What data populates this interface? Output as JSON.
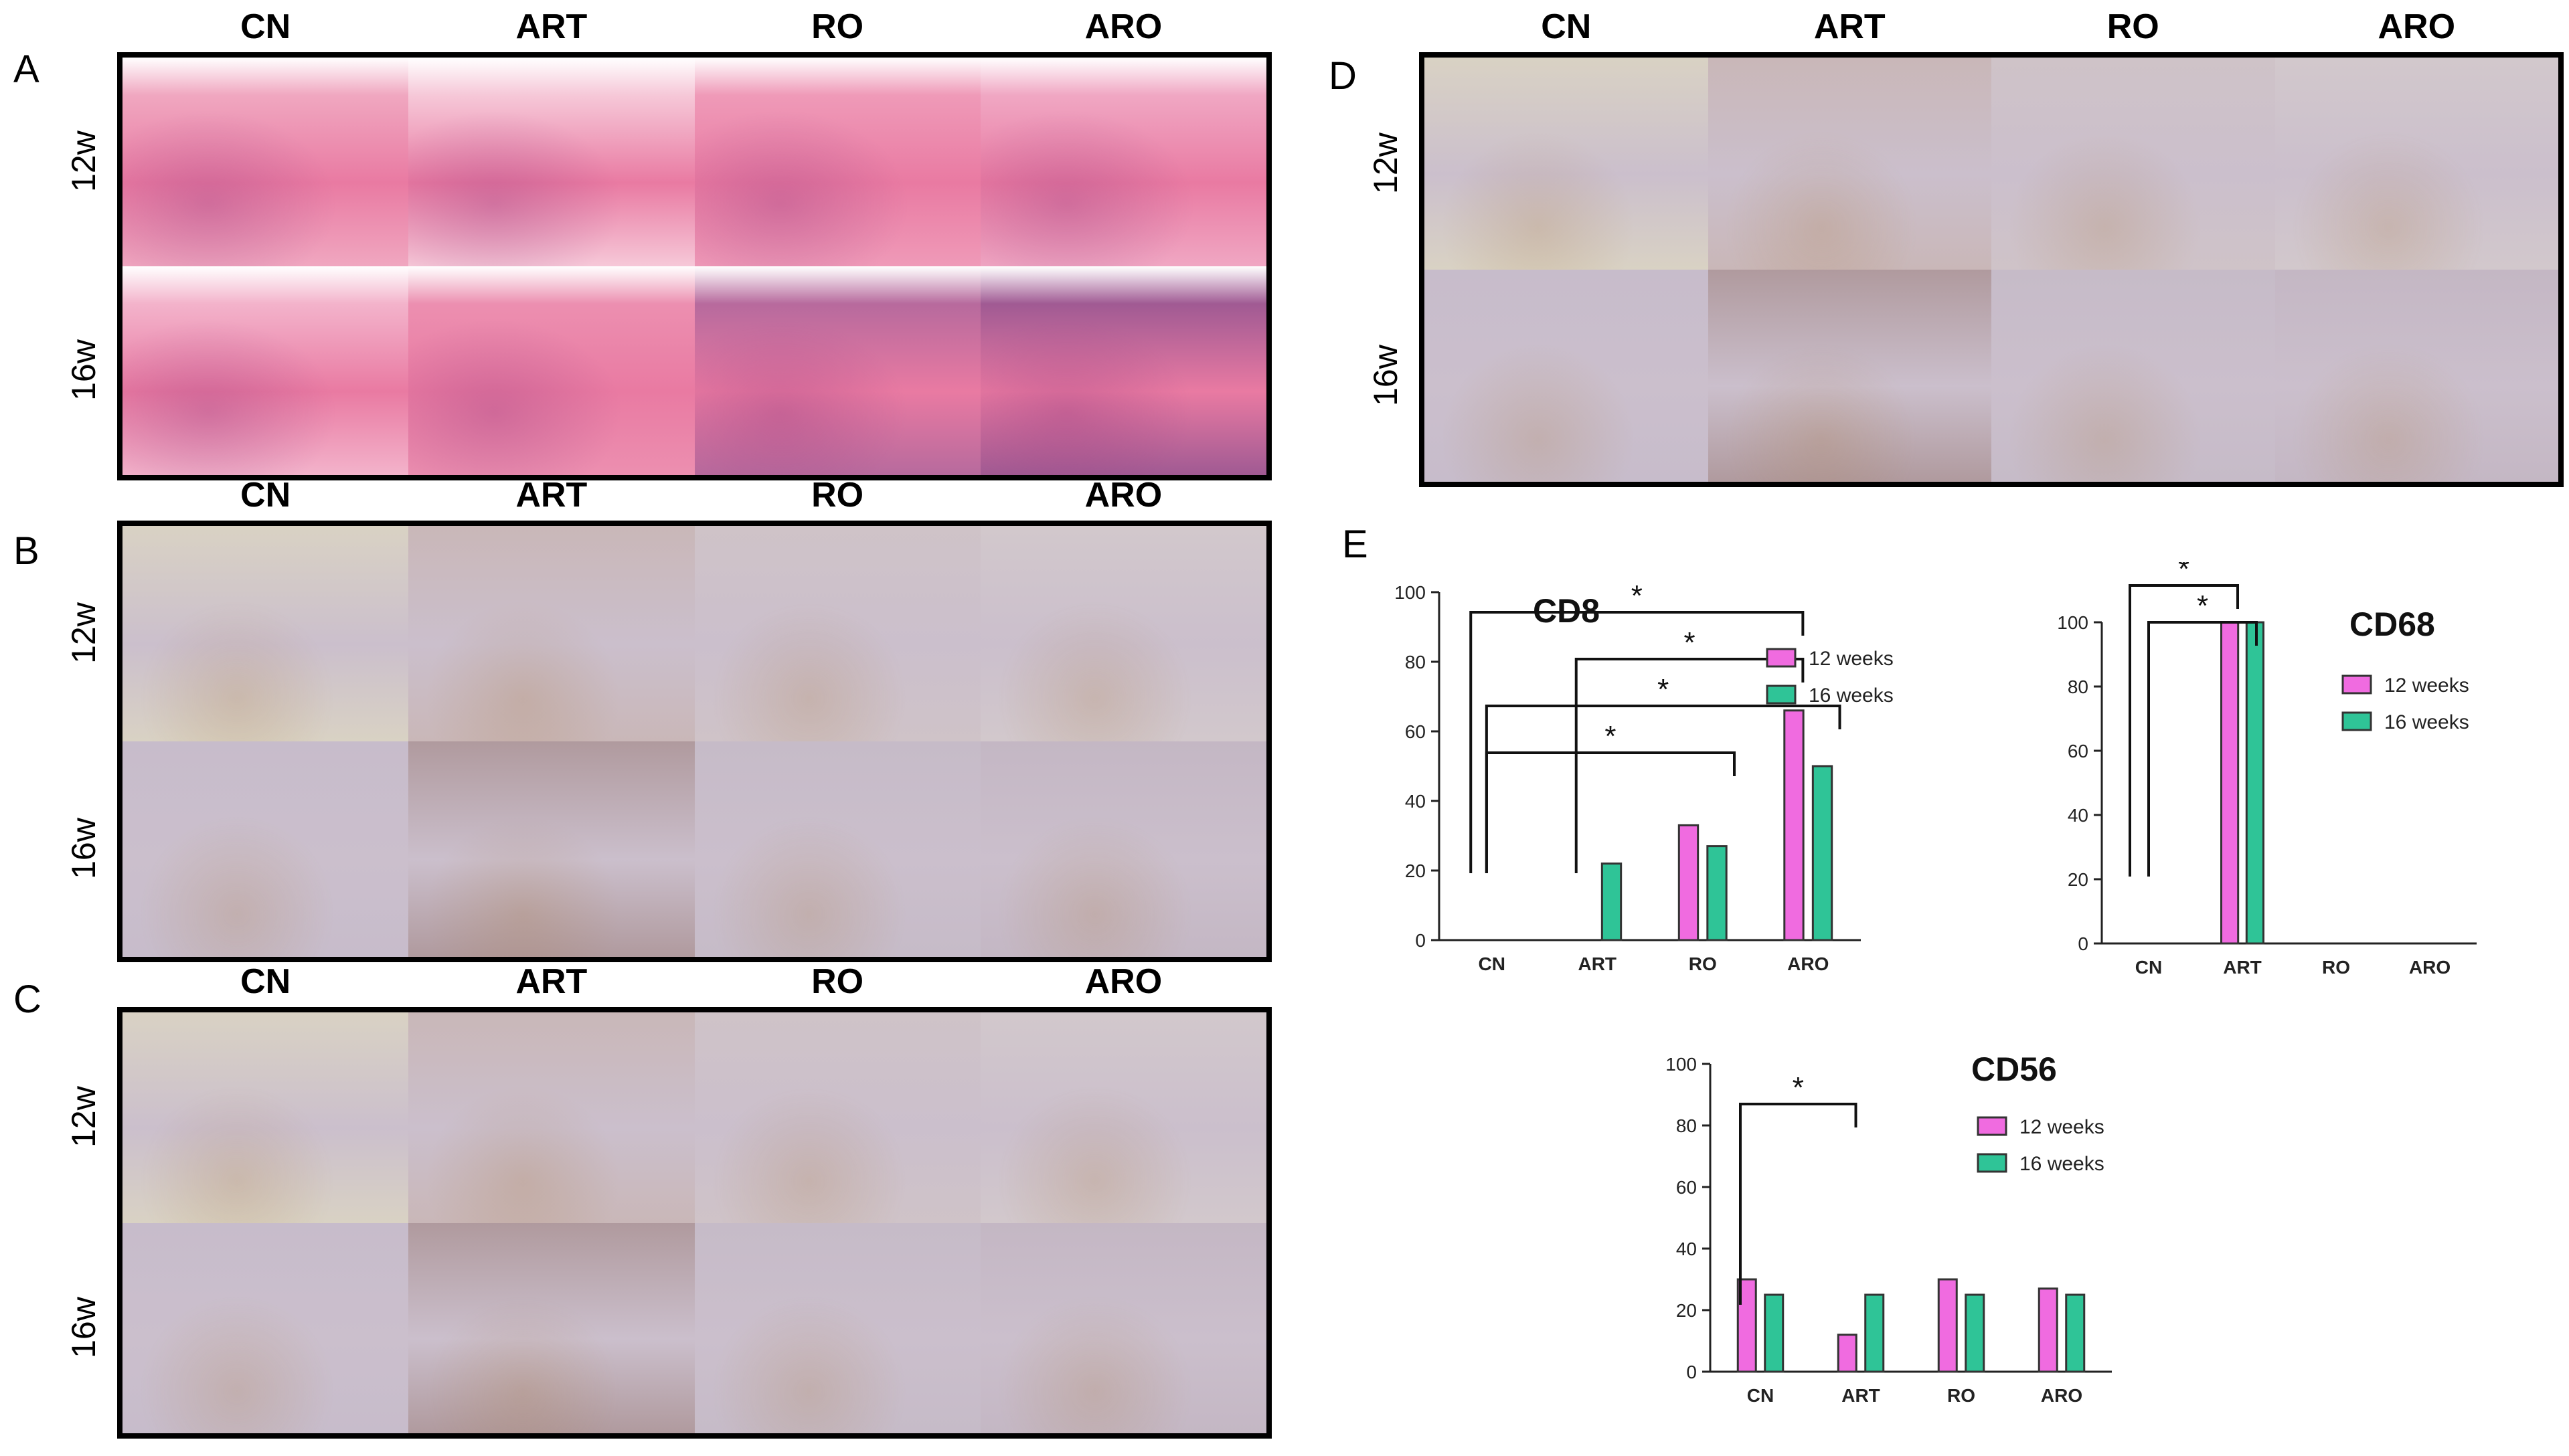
{
  "panels": {
    "A": {
      "letter": "A",
      "columns": [
        "CN",
        "ART",
        "RO",
        "ARO"
      ],
      "rows": [
        "12w",
        "16w"
      ]
    },
    "B": {
      "letter": "B",
      "columns": [
        "CN",
        "ART",
        "RO",
        "ARO"
      ],
      "rows": [
        "12w",
        "16w"
      ]
    },
    "C": {
      "letter": "C",
      "columns": [
        "CN",
        "ART",
        "RO",
        "ARO"
      ],
      "rows": [
        "12w",
        "16w"
      ]
    },
    "D": {
      "letter": "D",
      "columns": [
        "CN",
        "ART",
        "RO",
        "ARO"
      ],
      "rows": [
        "12w",
        "16w"
      ]
    },
    "E": {
      "letter": "E"
    }
  },
  "colors": {
    "he_pink": "#e97aa2",
    "he_dark": "#9b3c7f",
    "ihc_bg": "#cbbfcc",
    "ihc_brown": "#a8773f",
    "series_12": "#f06be0",
    "series_16": "#2fc497"
  },
  "chart_data": [
    {
      "type": "bar",
      "title": "CD8",
      "categories": [
        "CN",
        "ART",
        "RO",
        "ARO"
      ],
      "series": [
        {
          "name": "12 weeks",
          "values": [
            0,
            0,
            33,
            66
          ]
        },
        {
          "name": "16 weeks",
          "values": [
            0,
            22,
            27,
            50
          ]
        }
      ],
      "ylim": [
        0,
        100
      ],
      "yticks": [
        "0",
        "20",
        "40",
        "60",
        "80",
        "100"
      ],
      "significance": [
        {
          "from": "CN",
          "to": "ARO",
          "label": "*"
        },
        {
          "from": "ART",
          "to": "ARO",
          "label": "*"
        },
        {
          "from": "CN",
          "to": "ARO",
          "label": "*"
        },
        {
          "from": "CN",
          "to": "RO",
          "label": "*"
        }
      ]
    },
    {
      "type": "bar",
      "title": "CD68",
      "categories": [
        "CN",
        "ART",
        "RO",
        "ARO"
      ],
      "series": [
        {
          "name": "12 weeks",
          "values": [
            0,
            100,
            0,
            0
          ]
        },
        {
          "name": "16 weeks",
          "values": [
            0,
            100,
            0,
            0
          ]
        }
      ],
      "ylim": [
        0,
        100
      ],
      "yticks": [
        "0",
        "20",
        "40",
        "60",
        "80",
        "100"
      ],
      "significance": [
        {
          "from": "CN",
          "to": "ART",
          "label": "*"
        },
        {
          "from": "CN",
          "to": "ART",
          "label": "*"
        }
      ]
    },
    {
      "type": "bar",
      "title": "CD56",
      "categories": [
        "CN",
        "ART",
        "RO",
        "ARO"
      ],
      "series": [
        {
          "name": "12 weeks",
          "values": [
            30,
            12,
            30,
            27
          ]
        },
        {
          "name": "16 weeks",
          "values": [
            25,
            25,
            25,
            25
          ]
        }
      ],
      "ylim": [
        0,
        100
      ],
      "yticks": [
        "0",
        "20",
        "40",
        "60",
        "80",
        "100"
      ],
      "significance": [
        {
          "from": "CN",
          "to": "ART",
          "label": "*"
        }
      ]
    }
  ]
}
